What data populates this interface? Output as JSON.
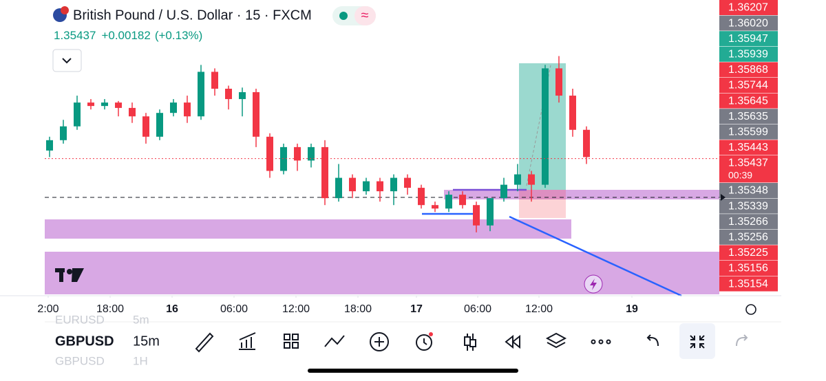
{
  "chart_data": {
    "type": "candlestick",
    "title": "British Pound / U.S. Dollar · 15 · FXCM",
    "last_price": 1.35437,
    "change": "+0.00182",
    "change_percent": "(+0.13%)",
    "countdown": "00:39",
    "up_color": "#089981",
    "down_color": "#f23645",
    "xlim": [
      -0.35,
      48.65
    ],
    "ylim": [
      1.3508,
      1.3585
    ],
    "xticks": [
      {
        "value": -0.1,
        "label": "2:00"
      },
      {
        "value": 4.4,
        "label": "18:00"
      },
      {
        "value": 8.9,
        "label": "16"
      },
      {
        "value": 13.4,
        "label": "06:00"
      },
      {
        "value": 17.9,
        "label": "12:00"
      },
      {
        "value": 22.4,
        "label": "18:00"
      },
      {
        "value": 26.65,
        "label": "17"
      },
      {
        "value": 31.1,
        "label": "06:00"
      },
      {
        "value": 35.55,
        "label": "12:00"
      },
      {
        "value": 42.3,
        "label": "19"
      }
    ],
    "candles": [
      {
        "o": 1.35458,
        "h": 1.35494,
        "l": 1.35441,
        "c": 1.35485
      },
      {
        "o": 1.35485,
        "h": 1.35538,
        "l": 1.35476,
        "c": 1.35521
      },
      {
        "o": 1.35521,
        "h": 1.35601,
        "l": 1.35512,
        "c": 1.35583
      },
      {
        "o": 1.35583,
        "h": 1.35592,
        "l": 1.35565,
        "c": 1.35574
      },
      {
        "o": 1.35574,
        "h": 1.35592,
        "l": 1.35565,
        "c": 1.35583
      },
      {
        "o": 1.35583,
        "h": 1.35587,
        "l": 1.35547,
        "c": 1.35569
      },
      {
        "o": 1.35569,
        "h": 1.35583,
        "l": 1.3553,
        "c": 1.35547
      },
      {
        "o": 1.35547,
        "h": 1.35556,
        "l": 1.35476,
        "c": 1.35494
      },
      {
        "o": 1.35494,
        "h": 1.35565,
        "l": 1.35485,
        "c": 1.35556
      },
      {
        "o": 1.35556,
        "h": 1.35592,
        "l": 1.35547,
        "c": 1.35583
      },
      {
        "o": 1.35583,
        "h": 1.35601,
        "l": 1.3553,
        "c": 1.35547
      },
      {
        "o": 1.35547,
        "h": 1.35681,
        "l": 1.35538,
        "c": 1.35663
      },
      {
        "o": 1.35663,
        "h": 1.35672,
        "l": 1.35601,
        "c": 1.35619
      },
      {
        "o": 1.35619,
        "h": 1.35627,
        "l": 1.35565,
        "c": 1.35592
      },
      {
        "o": 1.35592,
        "h": 1.35622,
        "l": 1.35547,
        "c": 1.3561
      },
      {
        "o": 1.3561,
        "h": 1.35619,
        "l": 1.35467,
        "c": 1.35494
      },
      {
        "o": 1.35494,
        "h": 1.35503,
        "l": 1.35387,
        "c": 1.35405
      },
      {
        "o": 1.35405,
        "h": 1.35476,
        "l": 1.35396,
        "c": 1.35467
      },
      {
        "o": 1.35467,
        "h": 1.35476,
        "l": 1.35405,
        "c": 1.35432
      },
      {
        "o": 1.35432,
        "h": 1.35476,
        "l": 1.35414,
        "c": 1.35467
      },
      {
        "o": 1.35467,
        "h": 1.35485,
        "l": 1.35316,
        "c": 1.35334
      },
      {
        "o": 1.35334,
        "h": 1.35423,
        "l": 1.35325,
        "c": 1.35387
      },
      {
        "o": 1.35387,
        "h": 1.35396,
        "l": 1.35334,
        "c": 1.35352
      },
      {
        "o": 1.35352,
        "h": 1.35387,
        "l": 1.35343,
        "c": 1.35378
      },
      {
        "o": 1.35378,
        "h": 1.35387,
        "l": 1.35325,
        "c": 1.35352
      },
      {
        "o": 1.35352,
        "h": 1.35396,
        "l": 1.35316,
        "c": 1.35387
      },
      {
        "o": 1.35387,
        "h": 1.35396,
        "l": 1.35343,
        "c": 1.35361
      },
      {
        "o": 1.35361,
        "h": 1.35369,
        "l": 1.35307,
        "c": 1.35316
      },
      {
        "o": 1.35316,
        "h": 1.35325,
        "l": 1.35298,
        "c": 1.35307
      },
      {
        "o": 1.35307,
        "h": 1.35352,
        "l": 1.35298,
        "c": 1.35343
      },
      {
        "o": 1.35343,
        "h": 1.35352,
        "l": 1.35307,
        "c": 1.35316
      },
      {
        "o": 1.35316,
        "h": 1.35325,
        "l": 1.35245,
        "c": 1.35263
      },
      {
        "o": 1.35263,
        "h": 1.35334,
        "l": 1.35248,
        "c": 1.35334
      },
      {
        "o": 1.35334,
        "h": 1.35387,
        "l": 1.35325,
        "c": 1.35369
      },
      {
        "o": 1.35369,
        "h": 1.35423,
        "l": 1.35352,
        "c": 1.35396
      },
      {
        "o": 1.35396,
        "h": 1.35405,
        "l": 1.35325,
        "c": 1.35369
      },
      {
        "o": 1.35369,
        "h": 1.35681,
        "l": 1.35361,
        "c": 1.35672
      },
      {
        "o": 1.35672,
        "h": 1.35704,
        "l": 1.35583,
        "c": 1.35601
      },
      {
        "o": 1.35601,
        "h": 1.35619,
        "l": 1.35494,
        "c": 1.35512
      },
      {
        "o": 1.35512,
        "h": 1.35521,
        "l": 1.35423,
        "c": 1.35441
      }
    ],
    "price_tags": [
      {
        "label": "1.36207",
        "color": "#f23645"
      },
      {
        "label": "1.36020",
        "color": "#787b86"
      },
      {
        "label": "1.35947",
        "color": "#22ab94"
      },
      {
        "label": "1.35939",
        "color": "#22ab94"
      },
      {
        "label": "1.35868",
        "color": "#f23645"
      },
      {
        "label": "1.35744",
        "color": "#f23645"
      },
      {
        "label": "1.35645",
        "color": "#f23645"
      },
      {
        "label": "1.35635",
        "color": "#787b86"
      },
      {
        "label": "1.35599",
        "color": "#787b86"
      },
      {
        "label": "1.35443",
        "color": "#f23645"
      },
      {
        "label": "1.35437",
        "color": "#f23645"
      },
      {
        "label": "1.35348",
        "color": "#787b86"
      },
      {
        "label": "1.35339",
        "color": "#787b86"
      },
      {
        "label": "1.35266",
        "color": "#787b86"
      },
      {
        "label": "1.35256",
        "color": "#787b86"
      },
      {
        "label": "1.35225",
        "color": "#f23645"
      },
      {
        "label": "1.35156",
        "color": "#f23645"
      },
      {
        "label": "1.35154",
        "color": "#f23645"
      }
    ]
  },
  "toolbar": {
    "symbol": "GBPUSD",
    "interval": "15m",
    "prev_symbol": "EURUSD",
    "prev_interval": "5m",
    "next_symbol": "GBPUSD",
    "next_interval": "1H"
  }
}
